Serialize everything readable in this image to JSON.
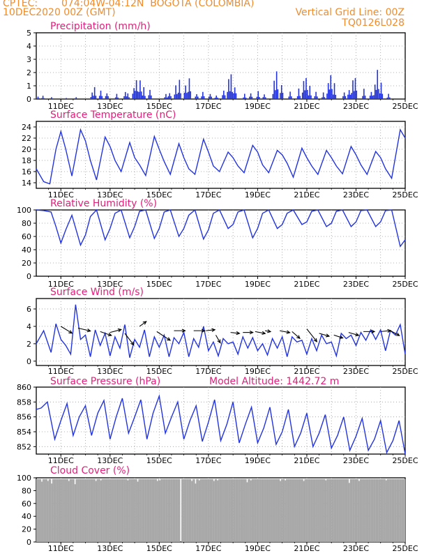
{
  "header": {
    "center": "CPTEC:",
    "location": "074:04W-04:12N  BOGOTA (COLOMBIA)",
    "date": "10DEC2020 00Z (GMT)",
    "grid_note": "Vertical Grid Line: 00Z",
    "run_id": "TQ0126L028"
  },
  "x_ticks": [
    "11DEC",
    "13DEC",
    "15DEC",
    "17DEC",
    "19DEC",
    "21DEC",
    "23DEC",
    "25DEC"
  ],
  "colors": {
    "line": "#2233dd",
    "title": "#e0207a",
    "header": "#f08c2c",
    "cloud": "#a8a8a8",
    "grid": "#999999"
  },
  "chart_data": [
    {
      "id": "precip",
      "type": "bar",
      "title": "Precipitation (mm/h)",
      "ylim": [
        0,
        5
      ],
      "yticks": [
        0,
        1,
        2,
        3,
        4,
        5
      ],
      "x_range_days": [
        10,
        25
      ],
      "peaks": [
        [
          10.05,
          0.2
        ],
        [
          10.25,
          0.25
        ],
        [
          10.6,
          0.15
        ],
        [
          11.2,
          0.1
        ],
        [
          11.6,
          0.15
        ],
        [
          12.25,
          0.5
        ],
        [
          12.35,
          0.9
        ],
        [
          12.6,
          0.7
        ],
        [
          12.85,
          0.6
        ],
        [
          13.25,
          0.4
        ],
        [
          13.6,
          0.6
        ],
        [
          13.7,
          0.45
        ],
        [
          13.95,
          1.1
        ],
        [
          14.05,
          1.7
        ],
        [
          14.2,
          1.6
        ],
        [
          14.35,
          0.9
        ],
        [
          14.6,
          0.8
        ],
        [
          15.25,
          0.4
        ],
        [
          15.4,
          0.6
        ],
        [
          15.65,
          1.1
        ],
        [
          15.8,
          1.5
        ],
        [
          16.05,
          1.3
        ],
        [
          16.2,
          1.7
        ],
        [
          16.5,
          0.5
        ],
        [
          16.75,
          0.6
        ],
        [
          17.05,
          0.5
        ],
        [
          17.3,
          0.3
        ],
        [
          17.6,
          0.8
        ],
        [
          17.8,
          1.6
        ],
        [
          17.9,
          1.9
        ],
        [
          18.05,
          1.2
        ],
        [
          18.45,
          0.4
        ],
        [
          18.7,
          0.5
        ],
        [
          19.0,
          0.6
        ],
        [
          19.25,
          0.4
        ],
        [
          19.65,
          1.4
        ],
        [
          19.75,
          2.2
        ],
        [
          19.95,
          1.3
        ],
        [
          20.3,
          0.6
        ],
        [
          20.65,
          0.8
        ],
        [
          20.85,
          1.5
        ],
        [
          20.95,
          1.9
        ],
        [
          21.1,
          1.0
        ],
        [
          21.35,
          0.6
        ],
        [
          21.65,
          0.5
        ],
        [
          21.85,
          1.3
        ],
        [
          21.95,
          2.1
        ],
        [
          22.1,
          1.2
        ],
        [
          22.5,
          0.6
        ],
        [
          22.7,
          0.9
        ],
        [
          22.85,
          1.5
        ],
        [
          22.95,
          1.8
        ],
        [
          23.3,
          0.8
        ],
        [
          23.6,
          0.7
        ],
        [
          23.75,
          1.1
        ],
        [
          23.85,
          2.3
        ],
        [
          24.0,
          1.3
        ],
        [
          24.3,
          0.4
        ]
      ]
    },
    {
      "id": "temp",
      "type": "line",
      "title": "Surface Temperature (nC)",
      "ylim": [
        13,
        25
      ],
      "yticks": [
        14,
        16,
        18,
        20,
        22,
        24
      ],
      "x": [
        10.0,
        10.3,
        10.55,
        10.8,
        11.0,
        11.2,
        11.45,
        11.8,
        12.0,
        12.2,
        12.45,
        12.8,
        13.0,
        13.2,
        13.45,
        13.8,
        14.0,
        14.2,
        14.45,
        14.8,
        15.0,
        15.2,
        15.45,
        15.8,
        16.0,
        16.2,
        16.45,
        16.8,
        17.0,
        17.2,
        17.45,
        17.8,
        18.0,
        18.2,
        18.45,
        18.8,
        19.0,
        19.2,
        19.45,
        19.8,
        20.0,
        20.2,
        20.45,
        20.8,
        21.0,
        21.2,
        21.45,
        21.8,
        22.0,
        22.2,
        22.45,
        22.8,
        23.0,
        23.2,
        23.45,
        23.8,
        24.0,
        24.2,
        24.45,
        24.8,
        25.0
      ],
      "y": [
        16.5,
        14.2,
        13.8,
        20.0,
        23.2,
        20.0,
        15.2,
        23.5,
        21.5,
        18.0,
        14.5,
        22.2,
        20.5,
        18.0,
        16.0,
        21.2,
        18.5,
        17.2,
        15.3,
        22.3,
        20.0,
        17.8,
        15.5,
        21.0,
        18.5,
        16.5,
        15.5,
        21.8,
        19.5,
        17.0,
        16.0,
        19.5,
        18.5,
        17.0,
        15.8,
        20.7,
        19.5,
        17.2,
        15.8,
        19.8,
        19.0,
        17.5,
        15.0,
        20.2,
        18.5,
        17.0,
        15.5,
        19.8,
        18.5,
        17.0,
        15.6,
        20.5,
        19.0,
        17.2,
        15.5,
        19.6,
        18.5,
        16.5,
        14.8,
        23.5,
        22.0
      ]
    },
    {
      "id": "rh",
      "type": "line",
      "title": "Relative Humidity (%)",
      "ylim": [
        0,
        100
      ],
      "yticks": [
        0,
        20,
        40,
        60,
        80,
        100
      ],
      "x": [
        10.0,
        10.3,
        10.6,
        10.8,
        11.0,
        11.2,
        11.45,
        11.8,
        12.0,
        12.2,
        12.45,
        12.8,
        13.0,
        13.2,
        13.45,
        13.8,
        14.0,
        14.2,
        14.45,
        14.8,
        15.0,
        15.2,
        15.45,
        15.8,
        16.0,
        16.2,
        16.45,
        16.8,
        17.0,
        17.2,
        17.45,
        17.8,
        18.0,
        18.2,
        18.45,
        18.8,
        19.0,
        19.2,
        19.45,
        19.8,
        20.0,
        20.2,
        20.45,
        20.8,
        21.0,
        21.2,
        21.45,
        21.8,
        22.0,
        22.2,
        22.45,
        22.8,
        23.0,
        23.2,
        23.45,
        23.8,
        24.0,
        24.2,
        24.45,
        24.8,
        25.0
      ],
      "y": [
        100,
        99,
        97,
        75,
        50,
        70,
        92,
        47,
        62,
        90,
        100,
        55,
        72,
        95,
        100,
        58,
        75,
        98,
        100,
        57,
        72,
        97,
        100,
        60,
        72,
        92,
        100,
        56,
        70,
        95,
        100,
        72,
        78,
        97,
        100,
        58,
        72,
        95,
        100,
        72,
        78,
        95,
        100,
        78,
        82,
        98,
        100,
        75,
        80,
        98,
        100,
        75,
        82,
        99,
        100,
        75,
        82,
        99,
        100,
        45,
        55
      ]
    },
    {
      "id": "wind",
      "type": "line",
      "title": "Surface Wind (m/s)",
      "ylim": [
        -0.5,
        7.2
      ],
      "yticks": [
        0,
        2,
        4,
        6
      ],
      "x": [
        10.0,
        10.3,
        10.6,
        10.8,
        11.0,
        11.2,
        11.4,
        11.6,
        11.8,
        12.0,
        12.2,
        12.4,
        12.6,
        12.8,
        13.0,
        13.2,
        13.4,
        13.6,
        13.8,
        14.0,
        14.2,
        14.4,
        14.6,
        14.8,
        15.0,
        15.2,
        15.4,
        15.6,
        15.8,
        16.0,
        16.2,
        16.4,
        16.6,
        16.8,
        17.0,
        17.2,
        17.4,
        17.6,
        17.8,
        18.0,
        18.2,
        18.4,
        18.6,
        18.8,
        19.0,
        19.2,
        19.4,
        19.6,
        19.8,
        20.0,
        20.2,
        20.4,
        20.6,
        20.8,
        21.0,
        21.2,
        21.4,
        21.6,
        21.8,
        22.0,
        22.2,
        22.4,
        22.6,
        22.8,
        23.0,
        23.2,
        23.4,
        23.6,
        23.8,
        24.0,
        24.2,
        24.4,
        24.6,
        24.8,
        25.0
      ],
      "y": [
        2.0,
        3.5,
        1.0,
        4.3,
        2.5,
        1.8,
        0.8,
        6.5,
        2.5,
        3.0,
        0.5,
        3.6,
        1.8,
        3.2,
        0.6,
        2.8,
        1.5,
        4.2,
        0.4,
        2.5,
        1.6,
        3.6,
        0.5,
        2.8,
        1.6,
        3.0,
        0.5,
        2.7,
        2.0,
        3.3,
        0.5,
        2.6,
        1.6,
        4.0,
        1.2,
        2.2,
        0.6,
        2.6,
        2.0,
        2.2,
        0.8,
        2.8,
        1.5,
        2.7,
        1.2,
        2.0,
        0.7,
        2.6,
        1.5,
        2.8,
        0.5,
        2.8,
        2.2,
        2.4,
        0.8,
        2.6,
        1.2,
        3.0,
        2.0,
        2.2,
        0.6,
        3.2,
        2.6,
        3.0,
        1.8,
        3.3,
        2.4,
        3.6,
        2.5,
        3.6,
        1.2,
        3.5,
        3.0,
        4.2,
        0.8
      ],
      "arrows": [
        [
          11.0,
          4.0,
          1.0,
          -0.7
        ],
        [
          11.7,
          3.8,
          1.1,
          -0.3
        ],
        [
          12.6,
          3.4,
          1.0,
          -0.4
        ],
        [
          13.0,
          3.3,
          1.0,
          0.3
        ],
        [
          13.6,
          3.2,
          0.8,
          -1.2
        ],
        [
          14.2,
          4.0,
          0.6,
          0.5
        ],
        [
          14.9,
          3.4,
          1.2,
          -0.9
        ],
        [
          15.6,
          3.5,
          1.0,
          0.0
        ],
        [
          16.4,
          3.5,
          1.0,
          0.0
        ],
        [
          16.9,
          3.5,
          0.8,
          0.1
        ],
        [
          17.3,
          3.0,
          0.4,
          -0.8
        ],
        [
          17.9,
          3.3,
          0.8,
          -0.1
        ],
        [
          18.4,
          3.3,
          0.9,
          0.0
        ],
        [
          18.9,
          3.4,
          0.9,
          -0.2
        ],
        [
          19.3,
          3.5,
          0.5,
          -0.1
        ],
        [
          19.9,
          3.5,
          0.9,
          -0.2
        ],
        [
          20.4,
          3.4,
          0.7,
          -0.7
        ],
        [
          21.0,
          3.7,
          0.9,
          -1.3
        ],
        [
          21.5,
          3.2,
          0.9,
          -0.3
        ],
        [
          22.1,
          3.0,
          0.8,
          -0.3
        ],
        [
          22.7,
          3.3,
          0.9,
          -0.3
        ],
        [
          23.3,
          3.4,
          1.0,
          0.0
        ],
        [
          24.0,
          3.4,
          0.9,
          0.1
        ],
        [
          24.4,
          3.5,
          0.8,
          -0.5
        ]
      ]
    },
    {
      "id": "pres",
      "type": "line",
      "title": "Surface Pressure (hPa)",
      "annotation": "Model Altitude: 1442.72 m",
      "ylim": [
        851,
        860
      ],
      "yticks": [
        852,
        854,
        856,
        858,
        860
      ],
      "x": [
        10.0,
        10.2,
        10.45,
        10.75,
        11.0,
        11.25,
        11.5,
        11.75,
        12.0,
        12.25,
        12.5,
        12.75,
        13.0,
        13.25,
        13.5,
        13.75,
        14.0,
        14.25,
        14.5,
        14.75,
        15.0,
        15.25,
        15.5,
        15.75,
        16.0,
        16.25,
        16.5,
        16.75,
        17.0,
        17.25,
        17.5,
        17.75,
        18.0,
        18.25,
        18.5,
        18.75,
        19.0,
        19.25,
        19.5,
        19.75,
        20.0,
        20.25,
        20.5,
        20.75,
        21.0,
        21.25,
        21.5,
        21.75,
        22.0,
        22.25,
        22.5,
        22.75,
        23.0,
        23.25,
        23.5,
        23.75,
        24.0,
        24.25,
        24.5,
        24.75,
        25.0
      ],
      "y": [
        857.0,
        857.2,
        858.0,
        853.0,
        855.5,
        857.8,
        853.5,
        856.0,
        857.5,
        853.5,
        856.5,
        858.2,
        853.0,
        856.0,
        858.5,
        853.8,
        856.0,
        858.3,
        853.0,
        856.5,
        858.8,
        853.8,
        856.0,
        858.0,
        853.0,
        855.5,
        857.5,
        852.7,
        855.3,
        858.3,
        852.8,
        855.0,
        858.0,
        852.5,
        855.0,
        857.3,
        852.5,
        854.5,
        857.3,
        852.3,
        854.0,
        857.0,
        852.0,
        853.8,
        856.5,
        852.0,
        853.8,
        856.3,
        851.8,
        853.5,
        856.0,
        851.5,
        853.4,
        855.8,
        851.5,
        853.0,
        855.5,
        851.2,
        852.8,
        855.5,
        851.0
      ]
    },
    {
      "id": "cloud",
      "type": "area",
      "title": "Cloud Cover (%)",
      "ylim": [
        0,
        100
      ],
      "yticks": [
        0,
        20,
        40,
        60,
        80,
        100
      ],
      "baseline": 98,
      "dips": [
        [
          10.2,
          94
        ],
        [
          10.45,
          95
        ],
        [
          10.6,
          91
        ],
        [
          11.3,
          95
        ],
        [
          11.55,
          90
        ],
        [
          12.4,
          95
        ],
        [
          12.6,
          96
        ],
        [
          13.7,
          96
        ],
        [
          14.1,
          94
        ],
        [
          14.9,
          95
        ],
        [
          15.0,
          96
        ],
        [
          15.85,
          0
        ],
        [
          16.3,
          95
        ],
        [
          16.45,
          91
        ],
        [
          16.6,
          96
        ],
        [
          17.2,
          95
        ],
        [
          17.35,
          96
        ],
        [
          18.55,
          93
        ],
        [
          18.7,
          96
        ],
        [
          19.9,
          95
        ],
        [
          20.1,
          96
        ],
        [
          20.85,
          95
        ],
        [
          21.75,
          96
        ],
        [
          22.7,
          92
        ],
        [
          23.1,
          95
        ],
        [
          24.2,
          96
        ]
      ]
    }
  ]
}
